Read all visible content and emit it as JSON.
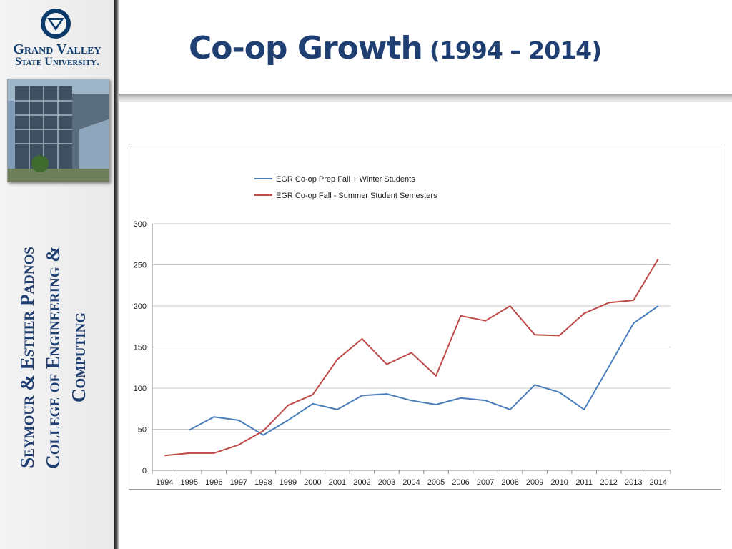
{
  "logo": {
    "line1": "Grand Valley",
    "line2": "State University."
  },
  "sidebar": {
    "title_line1": "Seymour & Esther Padnos",
    "title_line2": "College of Engineering &",
    "title_line3": "Computing"
  },
  "header": {
    "title_main": "Co-op Growth",
    "title_years": "(1994 – 2014)"
  },
  "colors": {
    "brand_blue": "#1f3f73",
    "series_blue": "#4a7ebb",
    "series_red": "#be4b48"
  },
  "chart_data": {
    "type": "line",
    "title": "",
    "xlabel": "",
    "ylabel": "",
    "ylim": [
      0,
      300
    ],
    "yticks": [
      0,
      50,
      100,
      150,
      200,
      250,
      300
    ],
    "grid": true,
    "legend_position": "top",
    "categories": [
      "1994",
      "1995",
      "1996",
      "1997",
      "1998",
      "1999",
      "2000",
      "2001",
      "2002",
      "2003",
      "2004",
      "2005",
      "2006",
      "2007",
      "2008",
      "2009",
      "2010",
      "2011",
      "2012",
      "2013",
      "2014"
    ],
    "series": [
      {
        "name": "EGR Co-op Prep Fall + Winter Students",
        "color": "#4a7ebb",
        "values": [
          null,
          49,
          65,
          61,
          43,
          61,
          81,
          74,
          91,
          93,
          85,
          80,
          88,
          85,
          74,
          104,
          95,
          74,
          126,
          179,
          200
        ]
      },
      {
        "name": "EGR Co-op Fall - Summer Student Semesters",
        "color": "#be4b48",
        "values": [
          18,
          21,
          21,
          31,
          48,
          79,
          92,
          135,
          160,
          129,
          143,
          115,
          188,
          182,
          200,
          165,
          164,
          191,
          204,
          207,
          257
        ]
      }
    ]
  }
}
